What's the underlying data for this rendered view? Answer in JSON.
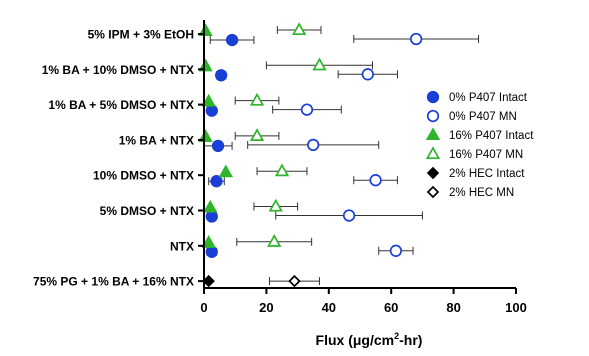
{
  "chart_data": {
    "type": "scatter",
    "orientation": "horizontal",
    "xlabel": "Flux (μg/cm²-hr)",
    "xlabel_main": "Flux (μg/cm",
    "xlabel_sup": "2",
    "xlabel_tail": "-hr)",
    "xlim": [
      0,
      100
    ],
    "xticks": [
      0,
      20,
      40,
      60,
      80,
      100
    ],
    "categories": [
      "5% IPM + 3% EtOH",
      "1% BA + 10% DMSO + NTX",
      "1% BA + 5% DMSO + NTX",
      "1% BA + NTX",
      "10% DMSO + NTX",
      "5% DMSO + NTX",
      "NTX",
      "75% PG + 1% BA + 16% NTX"
    ],
    "legend_position": "right",
    "series": [
      {
        "name": "0% P407 Intact",
        "marker": "circle",
        "filled": true,
        "color": "#1a3fd6",
        "points": [
          {
            "category": "5% IPM + 3% EtOH",
            "x": 9,
            "err": 7
          },
          {
            "category": "1% BA + 10% DMSO + NTX",
            "x": 5.5,
            "err": 1.5
          },
          {
            "category": "1% BA + 5% DMSO + NTX",
            "x": 2.5,
            "err": 1
          },
          {
            "category": "1% BA + NTX",
            "x": 4.5,
            "err": 4.5
          },
          {
            "category": "10% DMSO + NTX",
            "x": 4,
            "err": 2.5
          },
          {
            "category": "5% DMSO + NTX",
            "x": 2.5,
            "err": 1
          },
          {
            "category": "NTX",
            "x": 2.5,
            "err": 1.5
          }
        ]
      },
      {
        "name": "0% P407 MN",
        "marker": "circle",
        "filled": false,
        "color": "#1a3fd6",
        "points": [
          {
            "category": "5% IPM + 3% EtOH",
            "x": 68,
            "err": 20
          },
          {
            "category": "1% BA + 10% DMSO + NTX",
            "x": 52.5,
            "err": 9.5
          },
          {
            "category": "1% BA + 5% DMSO + NTX",
            "x": 33,
            "err": 11
          },
          {
            "category": "1% BA + NTX",
            "x": 35,
            "err": 21
          },
          {
            "category": "10% DMSO + NTX",
            "x": 55,
            "err": 7
          },
          {
            "category": "5% DMSO + NTX",
            "x": 46.5,
            "err": 23.5
          },
          {
            "category": "NTX",
            "x": 61.5,
            "err": 5.5
          }
        ]
      },
      {
        "name": "16% P407 Intact",
        "marker": "triangle",
        "filled": true,
        "color": "#2fb52a",
        "points": [
          {
            "category": "5% IPM + 3% EtOH",
            "x": 0.5,
            "err": 0
          },
          {
            "category": "1% BA + 10% DMSO + NTX",
            "x": 0.5,
            "err": 0
          },
          {
            "category": "1% BA + 5% DMSO + NTX",
            "x": 1.5,
            "err": 0
          },
          {
            "category": "1% BA + NTX",
            "x": 0.5,
            "err": 0
          },
          {
            "category": "10% DMSO + NTX",
            "x": 7,
            "err": 0
          },
          {
            "category": "5% DMSO + NTX",
            "x": 2,
            "err": 0
          },
          {
            "category": "NTX",
            "x": 1.5,
            "err": 0
          }
        ]
      },
      {
        "name": "16% P407 MN",
        "marker": "triangle",
        "filled": false,
        "color": "#2fb52a",
        "points": [
          {
            "category": "5% IPM + 3% EtOH",
            "x": 30.5,
            "err": 7
          },
          {
            "category": "1% BA + 10% DMSO + NTX",
            "x": 37,
            "err": 17
          },
          {
            "category": "1% BA + 5% DMSO + NTX",
            "x": 17,
            "err": 7
          },
          {
            "category": "1% BA + NTX",
            "x": 17,
            "err": 7
          },
          {
            "category": "10% DMSO + NTX",
            "x": 25,
            "err": 8
          },
          {
            "category": "5% DMSO + NTX",
            "x": 23,
            "err": 7
          },
          {
            "category": "NTX",
            "x": 22.5,
            "err": 12
          }
        ]
      },
      {
        "name": "2% HEC Intact",
        "marker": "diamond",
        "filled": true,
        "color": "#000000",
        "points": [
          {
            "category": "75% PG + 1% BA + 16% NTX",
            "x": 1.5,
            "err": 0
          }
        ]
      },
      {
        "name": "2% HEC MN",
        "marker": "diamond",
        "filled": false,
        "color": "#000000",
        "points": [
          {
            "category": "75% PG + 1% BA + 16% NTX",
            "x": 29,
            "err": 8
          }
        ]
      }
    ]
  }
}
